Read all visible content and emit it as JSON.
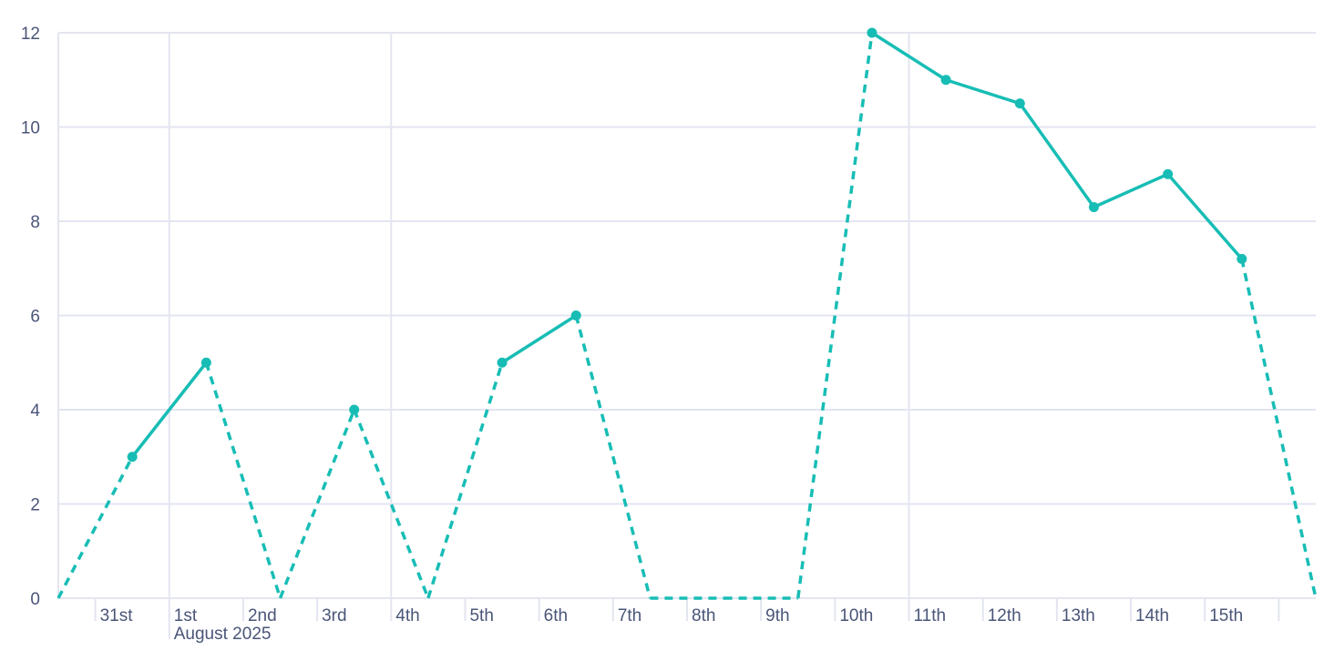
{
  "chart_data": {
    "type": "line",
    "title": "",
    "xlabel": "",
    "ylabel": "",
    "ylim": [
      0,
      12
    ],
    "yticks": [
      0,
      2,
      4,
      6,
      8,
      10,
      12
    ],
    "grid": true,
    "x": [
      "2025-07-30",
      "2025-07-31",
      "2025-08-01",
      "2025-08-02",
      "2025-08-03",
      "2025-08-04",
      "2025-08-05",
      "2025-08-06",
      "2025-08-07",
      "2025-08-08",
      "2025-08-09",
      "2025-08-10",
      "2025-08-11",
      "2025-08-12",
      "2025-08-13",
      "2025-08-14",
      "2025-08-15",
      "2025-08-16"
    ],
    "xtick_labels": [
      "31st",
      "1st",
      "2nd",
      "3rd",
      "4th",
      "5th",
      "6th",
      "7th",
      "8th",
      "9th",
      "10th",
      "11th",
      "12th",
      "13th",
      "14th",
      "15th"
    ],
    "month_label": "August 2025",
    "series": [
      {
        "color": "#17bdb5",
        "values": [
          null,
          3,
          5,
          null,
          4,
          null,
          5,
          6,
          null,
          null,
          null,
          12,
          11,
          10.5,
          8.3,
          9,
          7.2,
          null
        ],
        "missing_drawn_as": 0,
        "missing_style": "dashed"
      }
    ]
  },
  "colors": {
    "grid": "#e3e5f0",
    "text": "#4a5578",
    "series": "#17bdb5"
  }
}
